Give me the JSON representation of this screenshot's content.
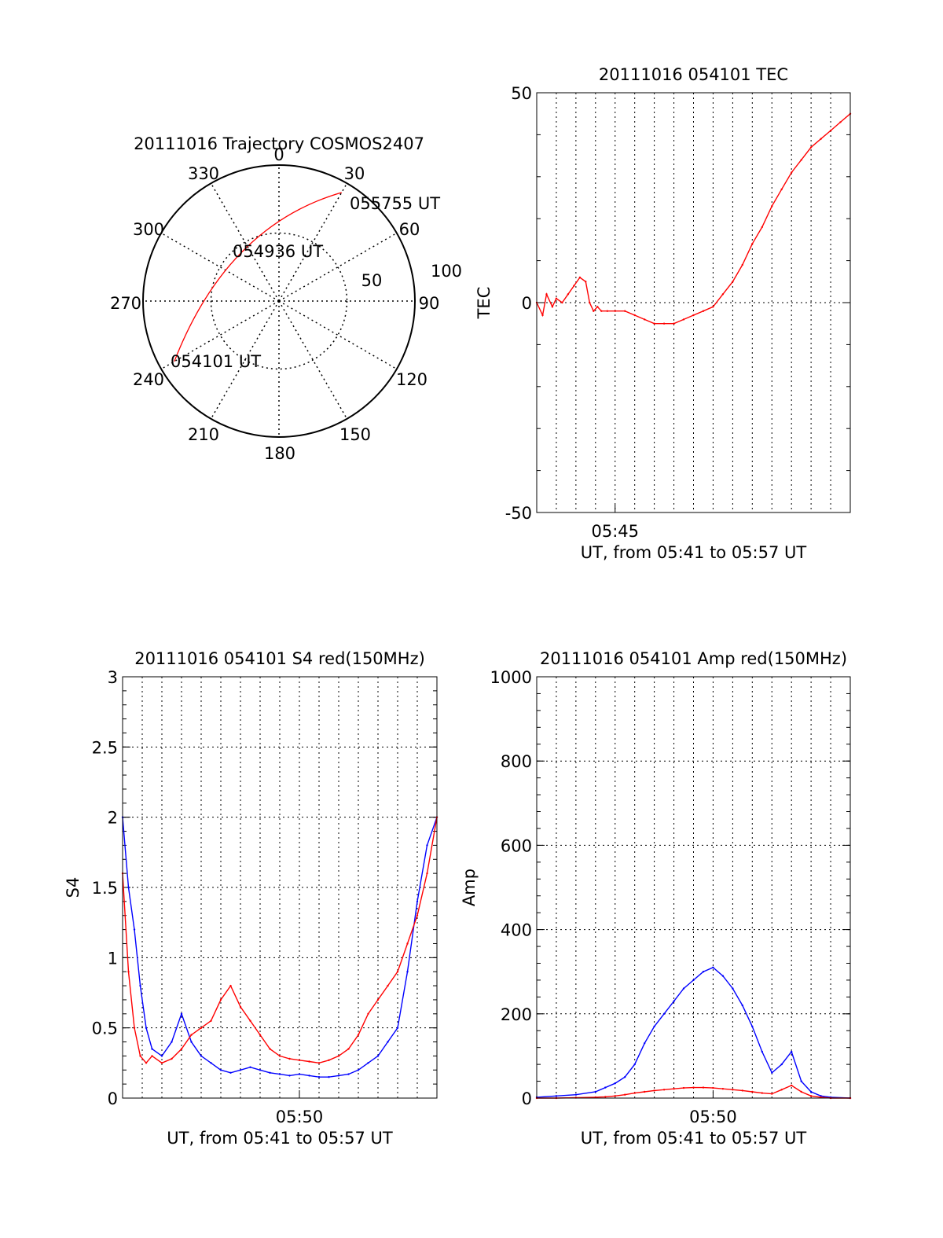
{
  "chart_data": [
    {
      "type": "polar",
      "title": "20111016 Trajectory COSMOS2407",
      "azimuth_labels": [
        "0",
        "30",
        "60",
        "90",
        "120",
        "150",
        "180",
        "210",
        "240",
        "270",
        "300",
        "330"
      ],
      "ring_labels": [
        "50",
        "100"
      ],
      "trajectory_points": [
        {
          "label": "054101 UT",
          "azimuth": 240,
          "zenith": 80
        },
        {
          "label": "054936 UT",
          "azimuth": 310,
          "zenith": 45
        },
        {
          "label": "055755 UT",
          "azimuth": 30,
          "zenith": 83
        }
      ],
      "trajectory_color": "#ff0000"
    },
    {
      "type": "line",
      "title": "20111016 054101 TEC",
      "xlabel": "UT, from 05:41 to 05:57 UT",
      "ylabel": "TEC",
      "xlim": [
        41.0,
        57.0
      ],
      "ylim": [
        -50,
        50
      ],
      "x_ticks": [
        {
          "value": 45,
          "label": "05:45"
        }
      ],
      "y_ticks": [
        {
          "value": 50,
          "label": "50"
        },
        {
          "value": 0,
          "label": "0"
        },
        {
          "value": -50,
          "label": "-50"
        }
      ],
      "series": [
        {
          "color": "#ff0000",
          "x": [
            41.0,
            41.3,
            41.5,
            41.8,
            42.0,
            42.3,
            42.6,
            42.9,
            43.2,
            43.5,
            43.7,
            43.9,
            44.1,
            44.3,
            44.6,
            45.0,
            45.5,
            46.0,
            46.5,
            47.0,
            47.5,
            48.0,
            48.5,
            49.0,
            49.5,
            50.0,
            50.5,
            51.0,
            51.5,
            52.0,
            52.5,
            53.0,
            53.5,
            54.0,
            54.5,
            55.0,
            55.5,
            56.0,
            56.5,
            57.0
          ],
          "y": [
            0,
            -3,
            2,
            -1,
            1,
            0,
            2,
            4,
            6,
            5,
            0,
            -2,
            -1,
            -2,
            -2,
            -2,
            -2,
            -3,
            -4,
            -5,
            -5,
            -5,
            -4,
            -3,
            -2,
            -1,
            2,
            5,
            9,
            14,
            18,
            23,
            27,
            31,
            34,
            37,
            39,
            41,
            43,
            45
          ]
        }
      ],
      "grid": true
    },
    {
      "type": "line",
      "title": "20111016 054101 S4 red(150MHz)",
      "xlabel": "UT, from 05:41 to 05:57 UT",
      "ylabel": "S4",
      "xlim": [
        41.0,
        57.0
      ],
      "ylim": [
        0,
        3
      ],
      "x_ticks": [
        {
          "value": 50,
          "label": "05:50"
        }
      ],
      "y_ticks": [
        {
          "value": 0,
          "label": "0"
        },
        {
          "value": 0.5,
          "label": "0.5"
        },
        {
          "value": 1,
          "label": "1"
        },
        {
          "value": 1.5,
          "label": "1.5"
        },
        {
          "value": 2,
          "label": "2"
        },
        {
          "value": 2.5,
          "label": "2.5"
        },
        {
          "value": 3,
          "label": "3"
        }
      ],
      "series": [
        {
          "color": "#0000ff",
          "x": [
            41.0,
            41.3,
            41.6,
            41.9,
            42.2,
            42.5,
            43.0,
            43.5,
            44.0,
            44.5,
            45.0,
            45.5,
            46.0,
            46.5,
            47.0,
            47.5,
            48.0,
            48.5,
            49.0,
            49.5,
            50.0,
            50.5,
            51.0,
            51.5,
            52.0,
            52.5,
            53.0,
            53.5,
            54.0,
            54.5,
            55.0,
            55.5,
            56.0,
            56.5,
            57.0
          ],
          "y": [
            2.0,
            1.5,
            1.2,
            0.8,
            0.5,
            0.35,
            0.3,
            0.4,
            0.6,
            0.4,
            0.3,
            0.25,
            0.2,
            0.18,
            0.2,
            0.22,
            0.2,
            0.18,
            0.17,
            0.16,
            0.17,
            0.16,
            0.15,
            0.15,
            0.16,
            0.17,
            0.2,
            0.25,
            0.3,
            0.4,
            0.5,
            0.9,
            1.4,
            1.8,
            2.0
          ]
        },
        {
          "color": "#ff0000",
          "x": [
            41.0,
            41.3,
            41.6,
            41.9,
            42.2,
            42.5,
            43.0,
            43.5,
            44.0,
            44.5,
            45.0,
            45.5,
            46.0,
            46.5,
            47.0,
            47.5,
            48.0,
            48.5,
            49.0,
            49.5,
            50.0,
            50.5,
            51.0,
            51.5,
            52.0,
            52.5,
            53.0,
            53.5,
            54.0,
            54.5,
            55.0,
            55.5,
            56.0,
            56.5,
            57.0
          ],
          "y": [
            1.6,
            0.9,
            0.5,
            0.3,
            0.25,
            0.3,
            0.25,
            0.28,
            0.35,
            0.45,
            0.5,
            0.55,
            0.7,
            0.8,
            0.65,
            0.55,
            0.45,
            0.35,
            0.3,
            0.28,
            0.27,
            0.26,
            0.25,
            0.27,
            0.3,
            0.35,
            0.45,
            0.6,
            0.7,
            0.8,
            0.9,
            1.1,
            1.3,
            1.6,
            2.0
          ]
        }
      ],
      "grid": true
    },
    {
      "type": "line",
      "title": "20111016 054101 Amp red(150MHz)",
      "xlabel": "UT, from 05:41 to 05:57 UT",
      "ylabel": "Amp",
      "xlim": [
        41.0,
        57.0
      ],
      "ylim": [
        0,
        1000
      ],
      "x_ticks": [
        {
          "value": 50,
          "label": "05:50"
        }
      ],
      "y_ticks": [
        {
          "value": 0,
          "label": "0"
        },
        {
          "value": 200,
          "label": "200"
        },
        {
          "value": 400,
          "label": "400"
        },
        {
          "value": 600,
          "label": "600"
        },
        {
          "value": 800,
          "label": "800"
        },
        {
          "value": 1000,
          "label": "1000"
        }
      ],
      "series": [
        {
          "color": "#0000ff",
          "x": [
            41.0,
            42.0,
            43.0,
            44.0,
            44.5,
            45.0,
            45.5,
            46.0,
            46.5,
            47.0,
            47.5,
            48.0,
            48.5,
            49.0,
            49.5,
            50.0,
            50.5,
            51.0,
            51.5,
            52.0,
            52.5,
            53.0,
            53.5,
            54.0,
            54.5,
            55.0,
            55.5,
            56.0,
            57.0
          ],
          "y": [
            2,
            5,
            8,
            15,
            25,
            35,
            50,
            80,
            130,
            170,
            200,
            230,
            260,
            280,
            300,
            310,
            290,
            260,
            220,
            170,
            110,
            60,
            80,
            110,
            40,
            15,
            5,
            2,
            0
          ]
        },
        {
          "color": "#ff0000",
          "x": [
            41.0,
            42.0,
            43.0,
            44.0,
            44.5,
            45.0,
            45.5,
            46.0,
            46.5,
            47.0,
            47.5,
            48.0,
            48.5,
            49.0,
            49.5,
            50.0,
            50.5,
            51.0,
            51.5,
            52.0,
            52.5,
            53.0,
            53.5,
            54.0,
            54.5,
            55.0,
            55.5,
            56.0,
            57.0
          ],
          "y": [
            0,
            0,
            1,
            2,
            3,
            5,
            8,
            12,
            15,
            18,
            20,
            22,
            24,
            25,
            25,
            24,
            22,
            20,
            18,
            15,
            12,
            10,
            20,
            30,
            15,
            5,
            2,
            0,
            0
          ]
        }
      ],
      "grid": true
    }
  ]
}
